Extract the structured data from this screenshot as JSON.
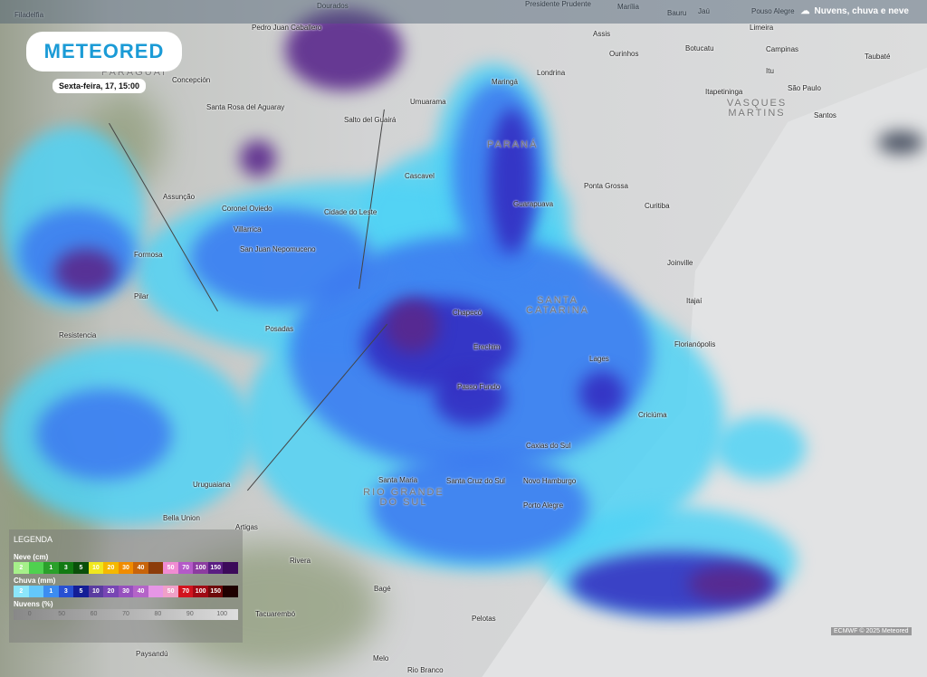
{
  "header": {
    "layer_label": "Nuvens, chuva e neve",
    "layer_icon": "cloud-rain-icon"
  },
  "logo": {
    "text": "METEORED"
  },
  "date_label": "Sexta-feira, 17, 15:00",
  "cities": [
    "Filadelfia",
    "Dourados",
    "Presidente Prudente",
    "Marília",
    "Bauru",
    "Jaú",
    "Pouso Alegre",
    "Pedro Juan Caballero",
    "Assis",
    "Limeira",
    "Ourinhos",
    "Botucatu",
    "Campinas",
    "Taubaté",
    "Concepción",
    "Londrina",
    "Maringá",
    "Itu",
    "São Paulo",
    "Itapetininga",
    "Santos",
    "Santa Rosa del Aguaray",
    "Umuarama",
    "Salto del Guairá",
    "Cascavel",
    "Ponta Grossa",
    "Curitiba",
    "Guarapuava",
    "Assunção",
    "Coronel Oviedo",
    "Cidade do Leste",
    "Villarrica",
    "San Juan Nepomuceno",
    "Formosa",
    "Joinville",
    "Pilar",
    "Itajaí",
    "Chapecó",
    "Resistencia",
    "Posadas",
    "Florianópolis",
    "Erechim",
    "Lages",
    "Passo Fundo",
    "Criciúma",
    "Caxias do Sul",
    "Uruguaiana",
    "Santa Maria",
    "Santa Cruz do Sul",
    "Novo Hamburgo",
    "Porto Alegre",
    "Bella Union",
    "Artigas",
    "Rivera",
    "Bagé",
    "Tacuarembó",
    "Pelotas",
    "Paysandú",
    "Melo",
    "Rio Branco"
  ],
  "regions": [
    "PARAGUAI",
    "VASQUES MARTINS",
    "PARANÁ",
    "SANTA CATARINA",
    "RIO GRANDE DO SUL"
  ],
  "legend": {
    "title": "LEGENDA",
    "snow": {
      "label": "Neve (cm)",
      "steps": [
        "2",
        "1",
        "3",
        "5",
        "10",
        "20",
        "30",
        "40",
        "50",
        "70",
        "100",
        "150"
      ],
      "colors": [
        "#a6f08a",
        "#4fd14f",
        "#2aa02a",
        "#127a12",
        "#0a4f0a",
        "#f0e81e",
        "#f5b800",
        "#f08c00",
        "#c8640a",
        "#8c3c0a",
        "#f08cd2",
        "#b45ac8",
        "#8c3ca0",
        "#5a1e82",
        "#3c0a5a"
      ]
    },
    "rain": {
      "label": "Chuva (mm)",
      "steps": [
        "2",
        "1",
        "3",
        "5",
        "10",
        "20",
        "30",
        "40",
        "50",
        "70",
        "100",
        "150"
      ],
      "colors": [
        "#8ce6fa",
        "#64c8fa",
        "#3c8cf0",
        "#2850d2",
        "#141e96",
        "#5a3ca0",
        "#7846b4",
        "#9650be",
        "#b464c8",
        "#e696e6",
        "#f0a0c8",
        "#d2141e",
        "#a00a14",
        "#6e0a0a",
        "#1e0000"
      ]
    },
    "clouds": {
      "label": "Nuvens (%)",
      "steps": [
        "0",
        "50",
        "60",
        "70",
        "80",
        "90",
        "100"
      ]
    }
  },
  "credit": "ECMWF © 2025 Meteored"
}
